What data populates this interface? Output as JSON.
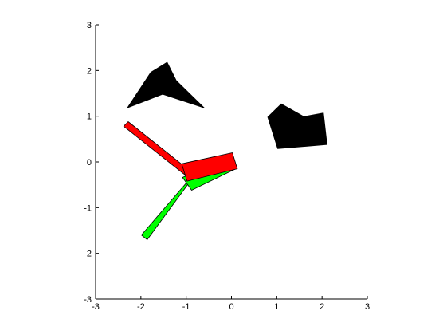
{
  "chart_data": {
    "type": "scatter",
    "title": "",
    "xlabel": "",
    "ylabel": "",
    "xlim": [
      -3,
      3
    ],
    "ylim": [
      -3,
      3
    ],
    "grid": false,
    "box": false,
    "x_ticks": [
      {
        "value": -3,
        "label": "-3"
      },
      {
        "value": -2,
        "label": "-2"
      },
      {
        "value": -1,
        "label": "-1"
      },
      {
        "value": 0,
        "label": "0"
      },
      {
        "value": 1,
        "label": "1"
      },
      {
        "value": 2,
        "label": "2"
      },
      {
        "value": 3,
        "label": "3"
      }
    ],
    "y_ticks": [
      {
        "value": -3,
        "label": "-3"
      },
      {
        "value": -2,
        "label": "-2"
      },
      {
        "value": -1,
        "label": "-1"
      },
      {
        "value": 0,
        "label": "0"
      },
      {
        "value": 1,
        "label": "1"
      },
      {
        "value": 2,
        "label": "2"
      },
      {
        "value": 3,
        "label": "3"
      }
    ],
    "colors": {
      "obstacle": "#000000",
      "arm_red": "#ff0000",
      "arm_green": "#00ff00",
      "edge": "#000000"
    },
    "shapes": [
      {
        "kind": "obstacle-arrowhead",
        "fill": "obstacle",
        "points": [
          [
            -2.3,
            1.18
          ],
          [
            -1.78,
            1.96
          ],
          [
            -1.42,
            2.18
          ],
          [
            -1.22,
            1.78
          ],
          [
            -0.6,
            1.18
          ],
          [
            -1.52,
            1.48
          ]
        ]
      },
      {
        "kind": "obstacle-pentagon",
        "fill": "obstacle",
        "points": [
          [
            0.8,
            0.98
          ],
          [
            1.1,
            1.27
          ],
          [
            1.6,
            0.99
          ],
          [
            2.03,
            1.07
          ],
          [
            2.11,
            0.38
          ],
          [
            1.02,
            0.29
          ],
          [
            0.8,
            0.98
          ]
        ]
      },
      {
        "kind": "arm-green-link-1",
        "fill": "arm_green",
        "points": [
          [
            -0.98,
            -0.44
          ],
          [
            -0.85,
            -0.34
          ],
          [
            -1.86,
            -1.7
          ],
          [
            -1.99,
            -1.6
          ]
        ]
      },
      {
        "kind": "arm-green-link-2",
        "fill": "arm_green",
        "points": [
          [
            -1.08,
            -0.34
          ],
          [
            -0.88,
            -0.62
          ],
          [
            0.12,
            -0.14
          ],
          [
            -0.12,
            0.14
          ]
        ]
      },
      {
        "kind": "arm-red-link-1",
        "fill": "arm_red",
        "points": [
          [
            -2.38,
            0.78
          ],
          [
            -2.28,
            0.88
          ],
          [
            -0.92,
            -0.19
          ],
          [
            -1.02,
            -0.29
          ]
        ]
      },
      {
        "kind": "arm-red-link-2",
        "fill": "arm_red",
        "points": [
          [
            -1.1,
            -0.04
          ],
          [
            0.02,
            0.2
          ],
          [
            0.13,
            -0.15
          ],
          [
            -0.98,
            -0.42
          ]
        ]
      }
    ]
  }
}
